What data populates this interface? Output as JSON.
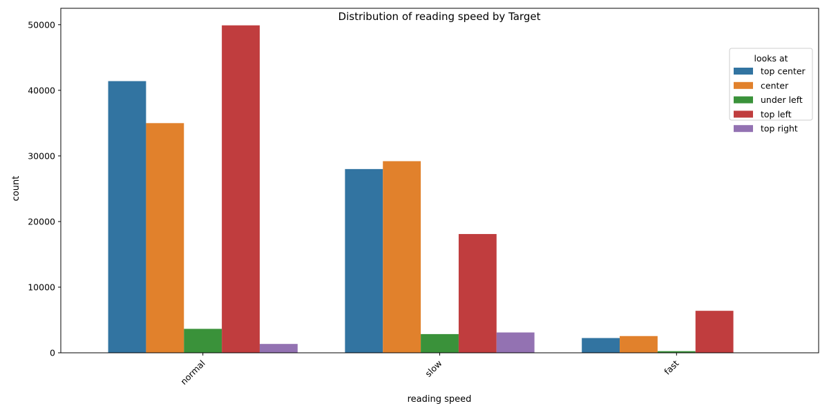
{
  "chart_data": {
    "type": "bar",
    "title": "Distribution of reading speed by Target",
    "xlabel": "reading speed",
    "ylabel": "count",
    "categories": [
      "normal",
      "slow",
      "fast"
    ],
    "ylim": [
      0,
      52500
    ],
    "yticks": [
      0,
      10000,
      20000,
      30000,
      40000,
      50000
    ],
    "grid": false,
    "legend": {
      "title": "looks at",
      "placement": "top-right"
    },
    "series": [
      {
        "name": "top center",
        "color": "#3274a1",
        "values": [
          41400,
          28000,
          2250
        ]
      },
      {
        "name": "center",
        "color": "#e1812c",
        "values": [
          35000,
          29200,
          2550
        ]
      },
      {
        "name": "under left",
        "color": "#3a923a",
        "values": [
          3650,
          2850,
          250
        ]
      },
      {
        "name": "top left",
        "color": "#c03d3e",
        "values": [
          49900,
          18100,
          6400
        ]
      },
      {
        "name": "top right",
        "color": "#9372b2",
        "values": [
          1350,
          3100,
          0
        ]
      }
    ]
  }
}
